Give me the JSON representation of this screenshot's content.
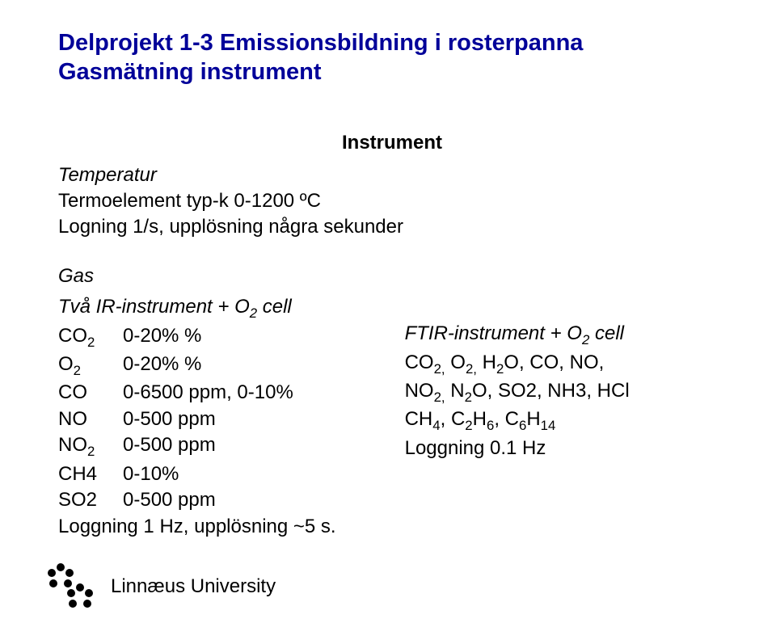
{
  "title": {
    "line1": "Delprojekt 1-3 Emissionsbildning i rosterpanna",
    "line2": "Gasmätning instrument"
  },
  "subtitle": "Instrument",
  "temperatur": {
    "heading": "Temperatur",
    "line1": "Termoelement typ-k 0-1200 ºC",
    "line2": "Logning 1/s, upplösning några sekunder"
  },
  "gas": {
    "heading": "Gas",
    "leftHeading_html": "Två IR-instrument + O<sub>2</sub> cell",
    "rows": [
      {
        "label_html": "CO<sub>2</sub>",
        "value": "0-20% %"
      },
      {
        "label_html": "O<sub>2</sub>",
        "value": " 0-20% %"
      },
      {
        "label_html": "CO",
        "value": "0-6500 ppm, 0-10%"
      },
      {
        "label_html": "NO",
        "value": "0-500 ppm"
      },
      {
        "label_html": "NO<sub>2</sub>",
        "value": "0-500 ppm"
      },
      {
        "label_html": "CH4",
        "value": "0-10%"
      },
      {
        "label_html": "SO2",
        "value": "0-500 ppm"
      }
    ],
    "leftFooter": "Loggning 1 Hz, upplösning ~5 s.",
    "rightHeading_html": "FTIR-instrument + O<sub>2</sub> cell",
    "rightLines_html": [
      "CO<sub>2,</sub> O<sub>2,</sub> H<sub>2</sub>O, CO, NO,",
      "NO<sub>2,</sub> N<sub>2</sub>O, SO2, NH3, HCl",
      "CH<sub>4</sub>, C<sub>2</sub>H<sub>6</sub>, C<sub>6</sub>H<sub>14</sub>",
      "Loggning 0.1 Hz"
    ]
  },
  "logo": {
    "text": "Linnæus University"
  },
  "colors": {
    "title": "#000099",
    "text": "#000000",
    "background": "#ffffff"
  }
}
